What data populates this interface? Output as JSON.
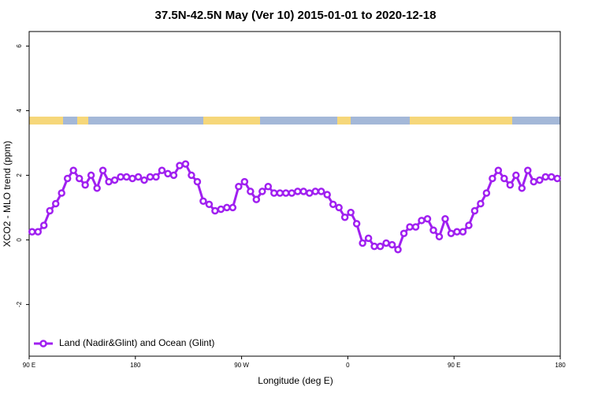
{
  "chart_data": {
    "type": "line",
    "title": "37.5N-42.5N May (Ver 10)   2015-01-01 to 2020-12-18",
    "x_label": "Longitude (deg E)",
    "y_label": "XCO2 - MLO trend (ppm)",
    "xlim": [
      90,
      540
    ],
    "xticks": [
      {
        "value": 90,
        "label": "90 E"
      },
      180,
      {
        "value": 270,
        "label": "90 W"
      },
      {
        "value": 360,
        "label": "0"
      },
      {
        "value": 450,
        "label": "90 E"
      },
      {
        "value": 540,
        "label": "180"
      }
    ],
    "ylim": [
      -3.6,
      6.45
    ],
    "yticks": [
      -2,
      0,
      2,
      4,
      6
    ],
    "legend": "bottom-left",
    "series": [
      {
        "name": "Land (Nadir&Glint) and Ocean (Glint)",
        "color": "#a020f0",
        "x": [
          92.5,
          97.5,
          102.5,
          107.5,
          112.5,
          117.5,
          122.5,
          127.5,
          132.5,
          137.5,
          142.5,
          147.5,
          152.5,
          157.5,
          162.5,
          167.5,
          172.5,
          177.5,
          182.5,
          187.5,
          192.5,
          197.5,
          202.5,
          207.5,
          212.5,
          217.5,
          222.5,
          227.5,
          232.5,
          237.5,
          242.5,
          247.5,
          252.5,
          257.5,
          262.5,
          267.5,
          272.5,
          277.5,
          282.5,
          287.5,
          292.5,
          297.5,
          302.5,
          307.5,
          312.5,
          317.5,
          322.5,
          327.5,
          332.5,
          337.5,
          342.5,
          347.5,
          352.5,
          357.5,
          362.5,
          367.5,
          372.5,
          377.5,
          382.5,
          387.5,
          392.5,
          397.5,
          402.5,
          407.5,
          412.5,
          417.5,
          422.5,
          427.5,
          432.5,
          437.5,
          442.5,
          447.5,
          452.5,
          457.5,
          462.5,
          467.5,
          472.5,
          477.5,
          482.5,
          487.5,
          492.5,
          497.5,
          502.5,
          507.5,
          512.5,
          517.5,
          522.5,
          527.5,
          532.5,
          537.5
        ],
        "values": [
          0.25,
          0.25,
          0.45,
          0.9,
          1.12,
          1.45,
          1.9,
          2.15,
          1.9,
          1.7,
          2.0,
          1.6,
          2.15,
          1.8,
          1.85,
          1.95,
          1.95,
          1.9,
          1.95,
          1.85,
          1.95,
          1.95,
          2.15,
          2.05,
          2.0,
          2.3,
          2.35,
          2.0,
          1.8,
          1.2,
          1.1,
          0.9,
          0.95,
          1.0,
          1.0,
          1.65,
          1.8,
          1.5,
          1.25,
          1.5,
          1.65,
          1.45,
          1.45,
          1.45,
          1.45,
          1.5,
          1.5,
          1.45,
          1.5,
          1.5,
          1.4,
          1.1,
          1.0,
          0.7,
          0.85,
          0.5,
          -0.1,
          0.05,
          -0.2,
          -0.2,
          -0.1,
          -0.15,
          -0.3,
          0.2,
          0.4,
          0.4,
          0.6,
          0.65,
          0.3,
          0.1,
          0.65,
          0.2,
          0.25,
          0.25,
          0.45,
          0.9,
          1.12,
          1.45,
          1.9,
          2.15,
          1.9,
          1.7,
          2.0,
          1.6,
          2.15,
          1.8,
          1.85,
          1.95,
          1.95,
          1.9
        ]
      }
    ]
  }
}
